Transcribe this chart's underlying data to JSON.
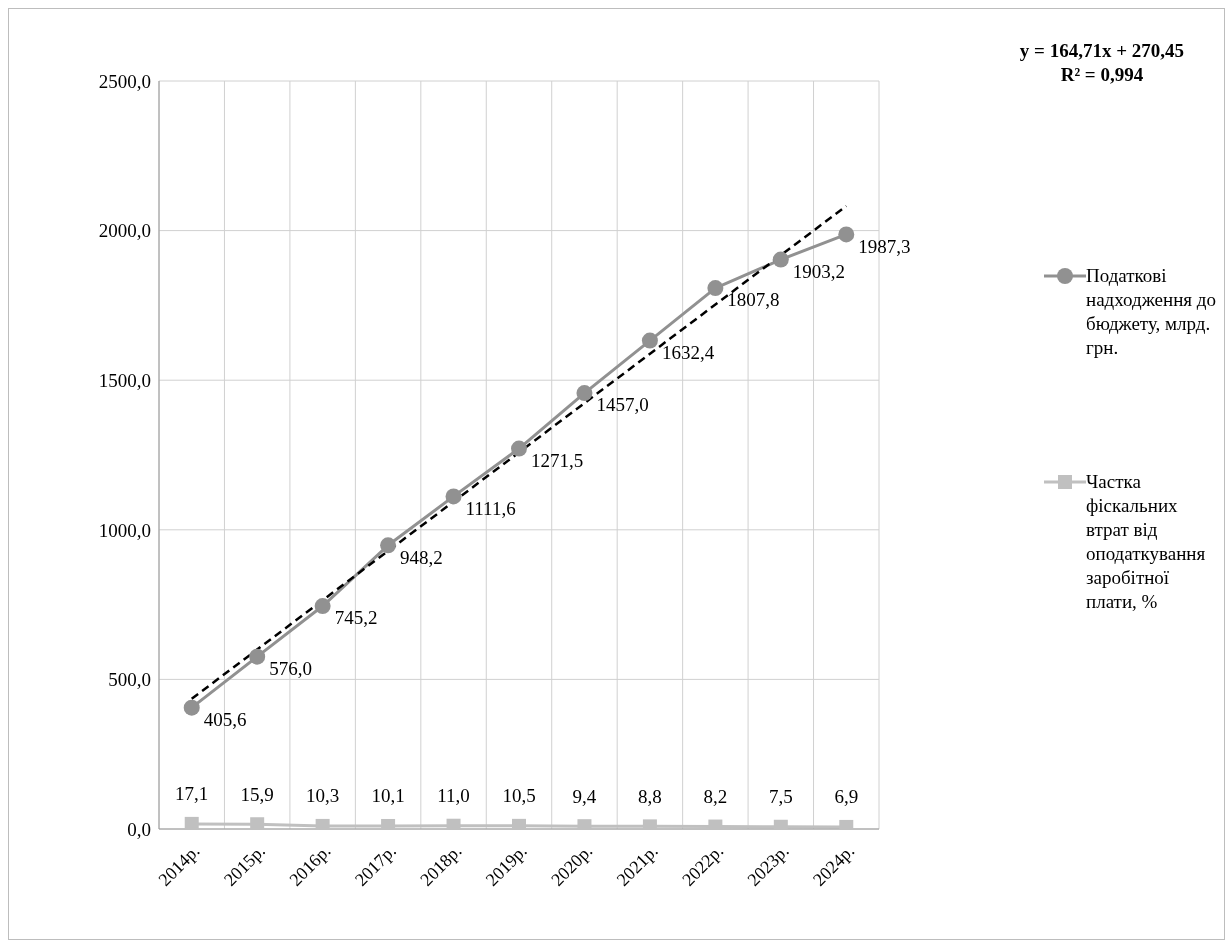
{
  "chart_data": {
    "type": "line",
    "categories": [
      "2014р.",
      "2015р.",
      "2016р.",
      "2017р.",
      "2018р.",
      "2019р.",
      "2020р.",
      "2021р.",
      "2022р.",
      "2023р.",
      "2024р."
    ],
    "series": [
      {
        "name": "Податкові надходження до бюджету, млрд. грн.",
        "color": "#919191",
        "marker": "circle",
        "values": [
          405.6,
          576.0,
          745.2,
          948.2,
          1111.6,
          1271.5,
          1457.0,
          1632.4,
          1807.8,
          1903.2,
          1987.3
        ],
        "value_labels": [
          "405,6",
          "576,0",
          "745,2",
          "948,2",
          "1111,6",
          "1271,5",
          "1457,0",
          "1632,4",
          "1807,8",
          "1903,2",
          "1987,3"
        ]
      },
      {
        "name": "Частка фіскальних втрат від оподаткування заробітної плати, %",
        "color": "#c0c0c0",
        "marker": "square",
        "values": [
          17.1,
          15.9,
          10.3,
          10.1,
          11.0,
          10.5,
          9.4,
          8.8,
          8.2,
          7.5,
          6.9
        ],
        "value_labels": [
          "17,1",
          "15,9",
          "10,3",
          "10,1",
          "11,0",
          "10,5",
          "9,4",
          "8,8",
          "8,2",
          "7,5",
          "6,9"
        ]
      },
      {
        "color": "#000000",
        "marker": "none",
        "line_style": "dashed",
        "values": [
          435.2,
          null,
          null,
          null,
          null,
          null,
          null,
          null,
          null,
          null,
          2082.3
        ]
      }
    ],
    "ylim": [
      0,
      2500
    ],
    "yticks": [
      {
        "value": 0,
        "label": "0,0"
      },
      {
        "value": 500,
        "label": "500,0"
      },
      {
        "value": 1000,
        "label": "1000,0"
      },
      {
        "value": 1500,
        "label": "1500,0"
      },
      {
        "value": 2000,
        "label": "2000,0"
      },
      {
        "value": 2500,
        "label": "2500,0"
      }
    ],
    "grid": true,
    "legend": "right",
    "annotations": [
      "y = 164,71x + 270,45",
      "R² = 0,994"
    ]
  }
}
